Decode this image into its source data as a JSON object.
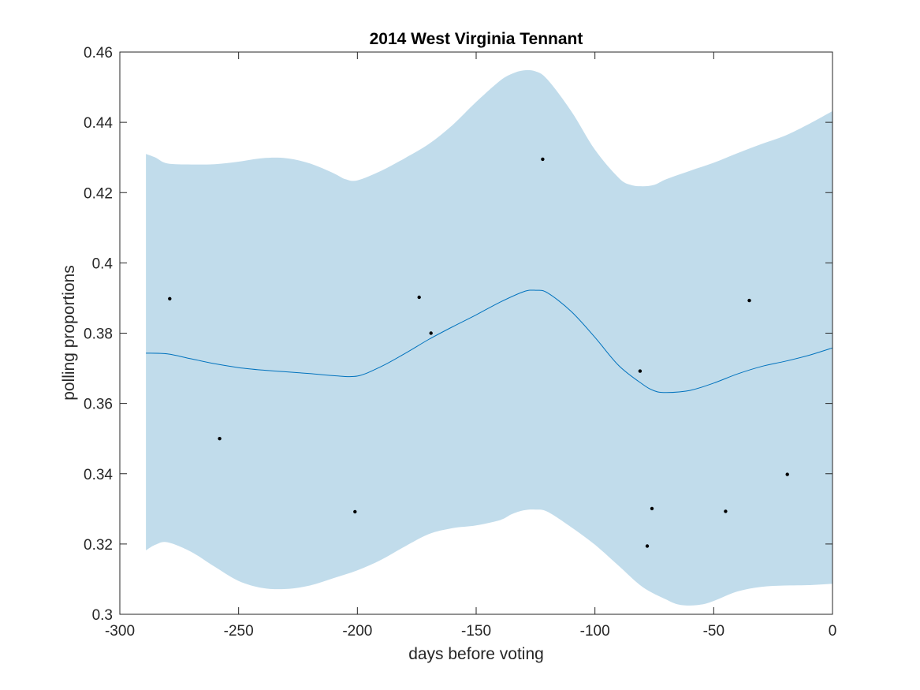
{
  "chart_data": {
    "type": "line",
    "title": "2014 West Virginia Tennant",
    "xlabel": "days before voting",
    "ylabel": "polling proportions",
    "xlim": [
      -300,
      0
    ],
    "ylim": [
      0.3,
      0.46
    ],
    "xticks": [
      -300,
      -250,
      -200,
      -150,
      -100,
      -50,
      0
    ],
    "yticks": [
      0.3,
      0.32,
      0.34,
      0.36,
      0.38,
      0.4,
      0.42,
      0.44,
      0.46
    ],
    "xtick_labels": [
      "-300",
      "-250",
      "-200",
      "-150",
      "-100",
      "-50",
      "0"
    ],
    "ytick_labels": [
      "0.3",
      "0.32",
      "0.34",
      "0.36",
      "0.38",
      "0.4",
      "0.42",
      "0.44",
      "0.46"
    ],
    "grid": false,
    "colors": {
      "mean_line": "#0072BD",
      "band": "#c1dceb",
      "points": "#000000",
      "axes": "#262626"
    },
    "mean": {
      "x": [
        -289,
        -280,
        -270,
        -260,
        -250,
        -240,
        -230,
        -220,
        -210,
        -200,
        -190,
        -180,
        -170,
        -160,
        -150,
        -140,
        -130,
        -125,
        -120,
        -110,
        -100,
        -90,
        -80,
        -75,
        -70,
        -60,
        -50,
        -40,
        -30,
        -20,
        -10,
        0
      ],
      "y": [
        0.3743,
        0.3741,
        0.3727,
        0.3713,
        0.3702,
        0.3695,
        0.369,
        0.3685,
        0.3679,
        0.3678,
        0.3705,
        0.3742,
        0.3782,
        0.3818,
        0.3852,
        0.3888,
        0.3918,
        0.3922,
        0.3915,
        0.3862,
        0.3788,
        0.3708,
        0.3655,
        0.3636,
        0.3631,
        0.3637,
        0.3658,
        0.3684,
        0.3705,
        0.372,
        0.3737,
        0.3758
      ]
    },
    "band_upper": {
      "x": [
        -289,
        -285,
        -280,
        -270,
        -260,
        -250,
        -240,
        -230,
        -220,
        -210,
        -205,
        -200,
        -190,
        -180,
        -170,
        -160,
        -150,
        -140,
        -135,
        -130,
        -125,
        -120,
        -110,
        -100,
        -90,
        -85,
        -80,
        -75,
        -70,
        -60,
        -50,
        -40,
        -30,
        -20,
        -10,
        0
      ],
      "y": [
        0.431,
        0.43,
        0.4283,
        0.428,
        0.4281,
        0.4288,
        0.4298,
        0.4298,
        0.4283,
        0.4255,
        0.4238,
        0.4235,
        0.4262,
        0.4298,
        0.4338,
        0.4392,
        0.4458,
        0.4518,
        0.4538,
        0.4548,
        0.4545,
        0.4522,
        0.4432,
        0.4322,
        0.4242,
        0.4222,
        0.4218,
        0.4222,
        0.4238,
        0.4262,
        0.4285,
        0.4312,
        0.4338,
        0.4362,
        0.4395,
        0.4432
      ]
    },
    "band_lower": {
      "x": [
        -289,
        -285,
        -280,
        -270,
        -260,
        -250,
        -240,
        -230,
        -220,
        -210,
        -200,
        -190,
        -180,
        -170,
        -160,
        -150,
        -140,
        -135,
        -130,
        -125,
        -120,
        -110,
        -100,
        -90,
        -80,
        -70,
        -65,
        -60,
        -55,
        -50,
        -40,
        -30,
        -20,
        -10,
        0
      ],
      "y": [
        0.3182,
        0.3198,
        0.3205,
        0.3178,
        0.3135,
        0.3095,
        0.3075,
        0.3072,
        0.3082,
        0.3103,
        0.3125,
        0.3155,
        0.3193,
        0.3228,
        0.3245,
        0.3253,
        0.3268,
        0.3285,
        0.3296,
        0.3298,
        0.3292,
        0.3248,
        0.3198,
        0.3138,
        0.3078,
        0.3042,
        0.3028,
        0.3025,
        0.3028,
        0.3038,
        0.3065,
        0.3078,
        0.3082,
        0.3083,
        0.3087
      ]
    },
    "points": {
      "x": [
        -279,
        -258,
        -201,
        -174,
        -169,
        -122,
        -81,
        -78,
        -76,
        -45,
        -35,
        -19
      ],
      "y": [
        0.3898,
        0.35,
        0.3292,
        0.3902,
        0.38,
        0.4295,
        0.3692,
        0.3194,
        0.3301,
        0.3293,
        0.3893,
        0.3398
      ]
    }
  }
}
